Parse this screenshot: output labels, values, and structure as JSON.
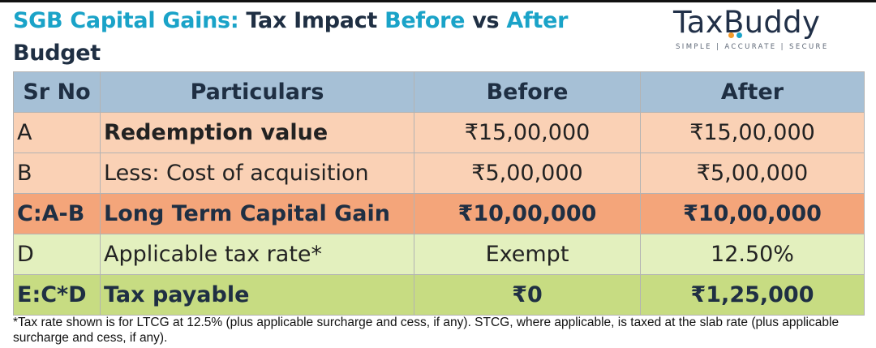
{
  "title": {
    "part1": "SGB Capital Gains:",
    "part2": " Tax Impact ",
    "part3": "Before",
    "part4": " vs ",
    "part5": "After",
    "part6": " Budget"
  },
  "logo": {
    "prefix": "Tax",
    "b_letter": "B",
    "suffix": "uddy",
    "tagline": "SIMPLE | ACCURATE | SECURE"
  },
  "colors": {
    "accent": "#1aa3c8",
    "dark": "#1f2f43",
    "header_bg": "#a6c0d6",
    "peach": "#fad1b5",
    "orange": "#f4a57a",
    "light_green": "#e3f0be",
    "green": "#c7dc82"
  },
  "table": {
    "headers": [
      "Sr No",
      "Particulars",
      "Before",
      "After"
    ],
    "rows": [
      [
        "A",
        "Redemption value",
        "₹15,00,000",
        "₹15,00,000"
      ],
      [
        "B",
        "Less: Cost of acquisition",
        "₹5,00,000",
        "₹5,00,000"
      ],
      [
        "C:A-B",
        "Long Term Capital Gain",
        "₹10,00,000",
        "₹10,00,000"
      ],
      [
        "D",
        "Applicable tax rate*",
        "Exempt",
        "12.50%"
      ],
      [
        "E:C*D",
        "Tax payable",
        "₹0",
        "₹1,25,000"
      ]
    ]
  },
  "footnote": "*Tax rate shown is for LTCG at 12.5% (plus applicable surcharge and cess, if any). STCG, where applicable, is taxed at the slab rate (plus applicable surcharge and cess, if any)."
}
